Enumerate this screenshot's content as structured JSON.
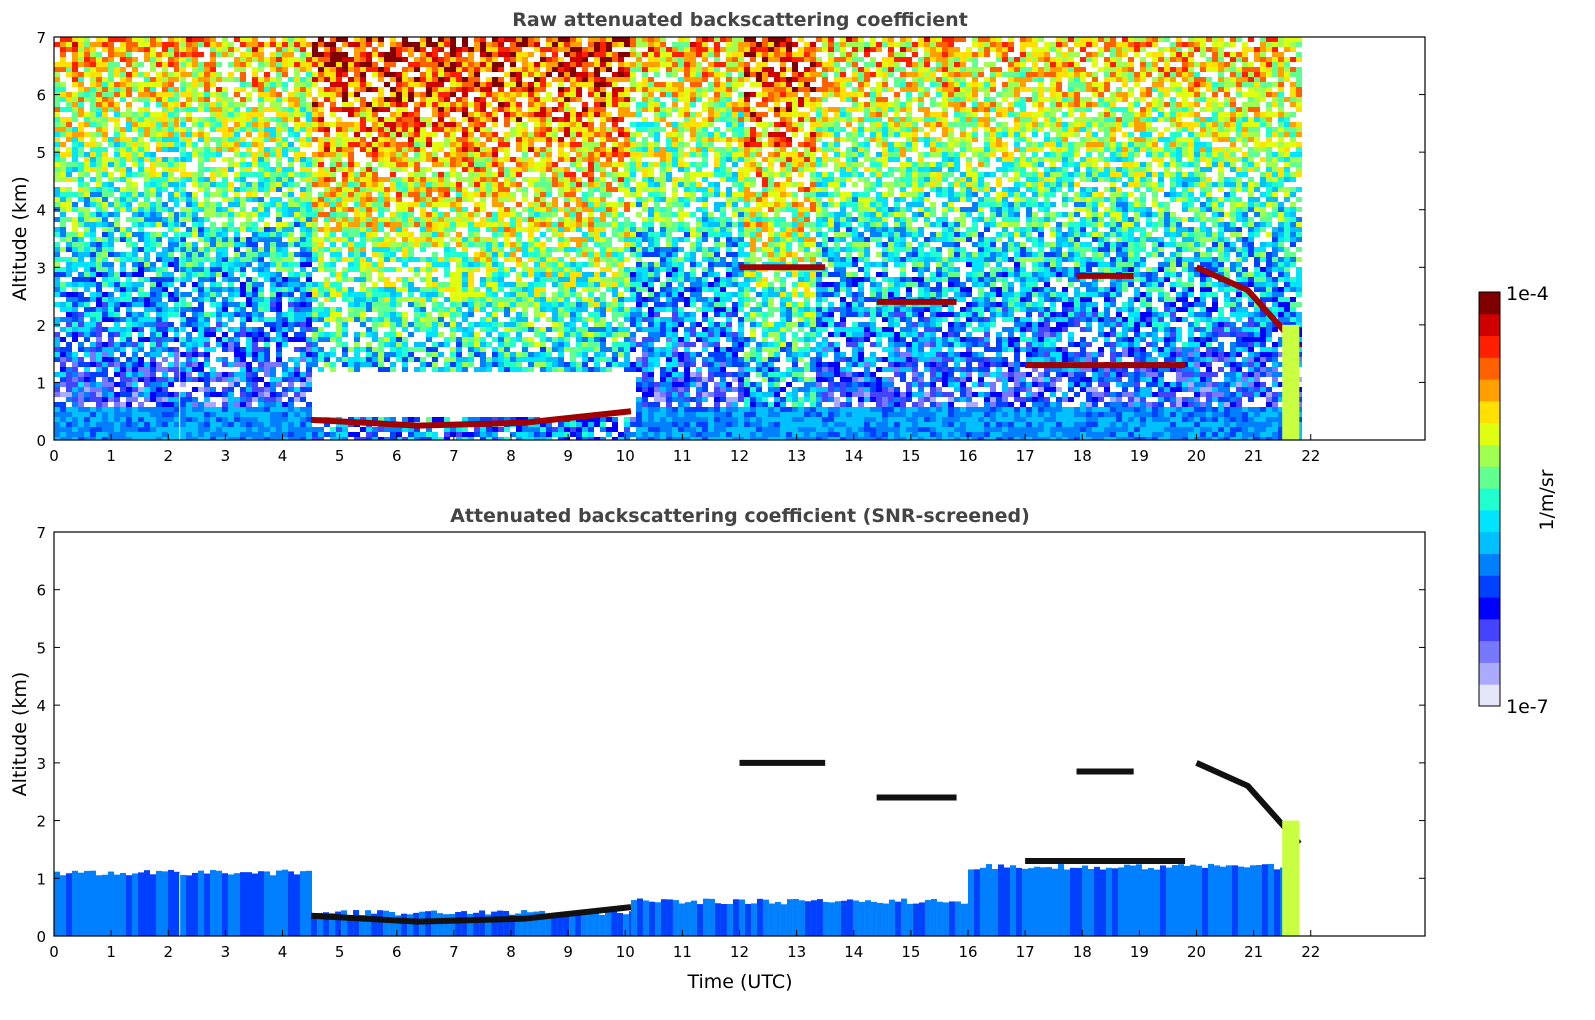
{
  "chart_data": [
    {
      "type": "heatmap",
      "title": "Raw attenuated backscattering coefficient",
      "xlabel": "",
      "ylabel": "Altitude (km)",
      "xlim": [
        0,
        24
      ],
      "ylim": [
        0,
        7
      ],
      "xticks": [
        "0",
        "1",
        "2",
        "3",
        "4",
        "5",
        "6",
        "7",
        "8",
        "9",
        "10",
        "11",
        "12",
        "13",
        "14",
        "15",
        "16",
        "17",
        "18",
        "19",
        "20",
        "21",
        "22"
      ],
      "yticks": [
        "0",
        "1",
        "2",
        "3",
        "4",
        "5",
        "6",
        "7"
      ],
      "data_extent_hours": [
        0,
        21.8
      ],
      "features": [
        {
          "name": "boundary-layer",
          "from": 0,
          "to": 21.5,
          "top_km": 0.6
        },
        {
          "name": "cloud-base-low",
          "from": 4.5,
          "to": 10.1,
          "alt_km": [
            0.35,
            0.25,
            0.3,
            0.5
          ]
        },
        {
          "name": "cloud-3km",
          "from": 12.0,
          "to": 13.5,
          "alt_km": 3.0
        },
        {
          "name": "cloud-2.5km",
          "from": 14.4,
          "to": 15.8,
          "alt_km": 2.4
        },
        {
          "name": "cloud-2.8km",
          "from": 17.9,
          "to": 18.9,
          "alt_km": 2.85
        },
        {
          "name": "cloud-descending",
          "from": 20.0,
          "to": 21.8,
          "alt_km": [
            3.0,
            2.6,
            1.6
          ]
        },
        {
          "name": "cloud-1.3km",
          "from": 17.0,
          "to": 19.8,
          "alt_km": 1.3
        }
      ]
    },
    {
      "type": "heatmap",
      "title": "Attenuated backscattering coefficient (SNR-screened)",
      "xlabel": "Time (UTC)",
      "ylabel": "Altitude (km)",
      "xlim": [
        0,
        24
      ],
      "ylim": [
        0,
        7
      ],
      "xticks": [
        "0",
        "1",
        "2",
        "3",
        "4",
        "5",
        "6",
        "7",
        "8",
        "9",
        "10",
        "11",
        "12",
        "13",
        "14",
        "15",
        "16",
        "17",
        "18",
        "19",
        "20",
        "21",
        "22"
      ],
      "yticks": [
        "0",
        "1",
        "2",
        "3",
        "4",
        "5",
        "6",
        "7"
      ],
      "data_extent_hours": [
        0,
        21.8
      ],
      "features": [
        {
          "name": "boundary-layer",
          "from": 0,
          "to": 4.5,
          "top_km": 1.1
        },
        {
          "name": "boundary-layer",
          "from": 4.5,
          "to": 10.1,
          "top_km": 0.4
        },
        {
          "name": "boundary-layer",
          "from": 10.1,
          "to": 16.0,
          "top_km": 0.6
        },
        {
          "name": "boundary-layer",
          "from": 16.0,
          "to": 21.5,
          "top_km": 1.2
        }
      ]
    }
  ],
  "colorbar": {
    "label": "1/m/sr",
    "max_label": "1e-4",
    "min_label": "1e-7",
    "scale": "log",
    "range": [
      1e-07,
      0.0001
    ],
    "colors": [
      "#e6e6fa",
      "#aaaaff",
      "#7777ff",
      "#4444ff",
      "#0000ff",
      "#0040ff",
      "#0080ff",
      "#00c0ff",
      "#00e5ff",
      "#20ffd0",
      "#60ff90",
      "#a0ff50",
      "#e0ff10",
      "#ffe000",
      "#ffa000",
      "#ff6000",
      "#ff2000",
      "#d00000",
      "#800000"
    ]
  }
}
